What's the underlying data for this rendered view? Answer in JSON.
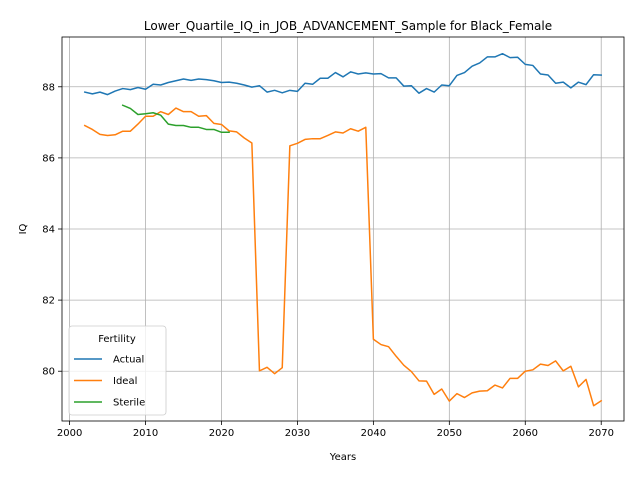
{
  "chart_data": {
    "type": "line",
    "title": "Lower_Quartile_IQ_in_JOB_ADVANCEMENT_Sample for Black_Female",
    "xlabel": "Years",
    "ylabel": "IQ",
    "xlim": [
      1999,
      2073
    ],
    "ylim": [
      78.6,
      89.4
    ],
    "xticks": [
      2000,
      2010,
      2020,
      2030,
      2040,
      2050,
      2060,
      2070
    ],
    "yticks": [
      80,
      82,
      84,
      86,
      88
    ],
    "grid": true,
    "legend": {
      "title": "Fertility",
      "placement": "lower-left"
    },
    "series": [
      {
        "name": "Actual",
        "color": "#1f77b4",
        "x": [
          2002,
          2003,
          2004,
          2005,
          2006,
          2007,
          2008,
          2009,
          2010,
          2011,
          2012,
          2013,
          2014,
          2015,
          2016,
          2017,
          2018,
          2019,
          2020,
          2021,
          2022,
          2023,
          2024,
          2025,
          2026,
          2027,
          2028,
          2029,
          2030,
          2031,
          2032,
          2033,
          2034,
          2035,
          2036,
          2037,
          2038,
          2039,
          2040,
          2041,
          2042,
          2043,
          2044,
          2045,
          2046,
          2047,
          2048,
          2049,
          2050,
          2051,
          2052,
          2053,
          2054,
          2055,
          2056,
          2057,
          2058,
          2059,
          2060,
          2061,
          2062,
          2063,
          2064,
          2065,
          2066,
          2067,
          2068,
          2069,
          2070
        ],
        "y": [
          87.85,
          87.8,
          87.85,
          87.78,
          87.88,
          87.95,
          87.92,
          87.98,
          87.93,
          88.07,
          88.05,
          88.12,
          88.17,
          88.22,
          88.18,
          88.22,
          88.2,
          88.17,
          88.12,
          88.13,
          88.1,
          88.05,
          87.99,
          88.03,
          87.85,
          87.9,
          87.83,
          87.9,
          87.87,
          88.1,
          88.07,
          88.24,
          88.24,
          88.4,
          88.28,
          88.42,
          88.36,
          88.39,
          88.36,
          88.37,
          88.25,
          88.25,
          88.02,
          88.03,
          87.82,
          87.95,
          87.85,
          88.05,
          88.03,
          88.32,
          88.4,
          88.58,
          88.67,
          88.84,
          88.84,
          88.93,
          88.82,
          88.83,
          88.63,
          88.6,
          88.36,
          88.33,
          88.1,
          88.13,
          87.97,
          88.13,
          88.06,
          88.34,
          88.33
        ]
      },
      {
        "name": "Ideal",
        "color": "#ff7f0e",
        "x": [
          2002,
          2003,
          2004,
          2005,
          2006,
          2007,
          2008,
          2009,
          2010,
          2011,
          2012,
          2013,
          2014,
          2015,
          2016,
          2017,
          2018,
          2019,
          2020,
          2021,
          2022,
          2023,
          2024,
          2025,
          2026,
          2027,
          2028,
          2029,
          2030,
          2031,
          2032,
          2033,
          2034,
          2035,
          2036,
          2037,
          2038,
          2039,
          2040,
          2041,
          2042,
          2043,
          2044,
          2045,
          2046,
          2047,
          2048,
          2049,
          2050,
          2051,
          2052,
          2053,
          2054,
          2055,
          2056,
          2057,
          2058,
          2059,
          2060,
          2061,
          2062,
          2063,
          2064,
          2065,
          2066,
          2067,
          2068,
          2069,
          2070
        ],
        "y": [
          86.91,
          86.8,
          86.66,
          86.63,
          86.65,
          86.75,
          86.75,
          86.95,
          87.17,
          87.17,
          87.3,
          87.22,
          87.4,
          87.3,
          87.3,
          87.17,
          87.19,
          86.97,
          86.94,
          86.76,
          86.73,
          86.56,
          86.42,
          80.01,
          80.11,
          79.93,
          80.1,
          86.34,
          86.41,
          86.52,
          86.54,
          86.54,
          86.63,
          86.73,
          86.7,
          86.82,
          86.75,
          86.86,
          80.9,
          80.75,
          80.69,
          80.42,
          80.17,
          79.99,
          79.73,
          79.72,
          79.35,
          79.5,
          79.16,
          79.37,
          79.26,
          79.39,
          79.44,
          79.45,
          79.61,
          79.53,
          79.8,
          79.8,
          80.0,
          80.04,
          80.2,
          80.16,
          80.29,
          80.01,
          80.14,
          79.56,
          79.77,
          79.03,
          79.17
        ]
      },
      {
        "name": "Sterile",
        "color": "#2ca02c",
        "x": [
          2007,
          2008,
          2009,
          2010,
          2011,
          2012,
          2013,
          2014,
          2015,
          2016,
          2017,
          2018,
          2019,
          2020,
          2021
        ],
        "y": [
          87.48,
          87.39,
          87.22,
          87.24,
          87.27,
          87.2,
          86.95,
          86.91,
          86.91,
          86.86,
          86.86,
          86.8,
          86.8,
          86.72,
          86.72
        ]
      }
    ]
  }
}
